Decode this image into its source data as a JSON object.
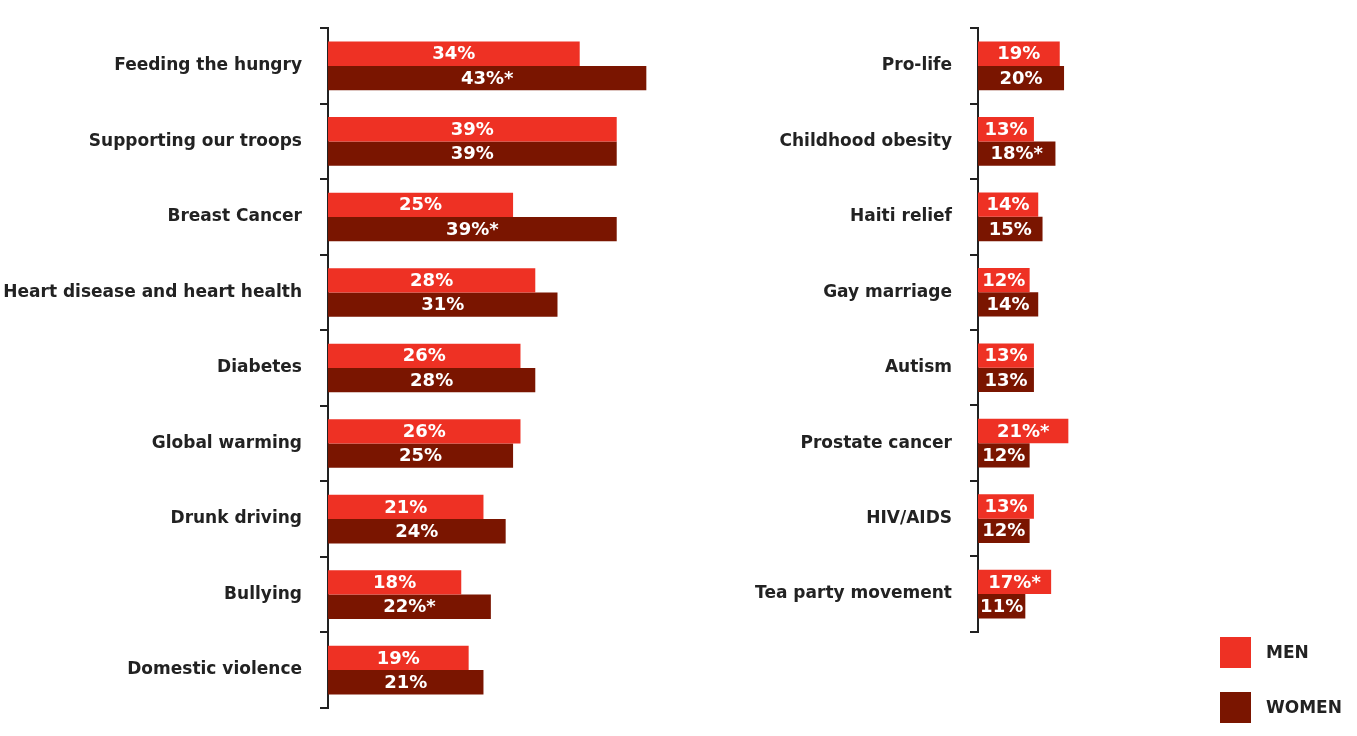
{
  "chart_data": [
    {
      "type": "bar",
      "orientation": "horizontal",
      "categories": [
        "Feeding the hungry",
        "Supporting our troops",
        "Breast Cancer",
        "Heart disease and heart health",
        "Diabetes",
        "Global warming",
        "Drunk driving",
        "Bullying",
        "Domestic violence"
      ],
      "series": [
        {
          "color": "#ee3124",
          "values": [
            34,
            39,
            25,
            28,
            26,
            26,
            21,
            18,
            19
          ],
          "value_labels": [
            "34%",
            "39%",
            "25%",
            "28%",
            "26%",
            "26%",
            "21%",
            "18%",
            "19%"
          ]
        },
        {
          "color": "#7a1500",
          "values": [
            43,
            39,
            39,
            31,
            28,
            25,
            24,
            22,
            21
          ],
          "value_labels": [
            "43%*",
            "39%",
            "39%*",
            "31%",
            "28%",
            "25%",
            "24%",
            "22%*",
            "21%"
          ]
        }
      ],
      "grid": false
    },
    {
      "type": "bar",
      "orientation": "horizontal",
      "categories": [
        "Pro-life",
        "Childhood obesity",
        "Haiti relief",
        "Gay marriage",
        "Autism",
        "Prostate cancer",
        "HIV/AIDS",
        "Tea party movement"
      ],
      "series": [
        {
          "name": "MEN",
          "color": "#ee3124",
          "values": [
            19,
            13,
            14,
            12,
            13,
            21,
            13,
            17
          ],
          "value_labels": [
            "19%",
            "13%",
            "14%",
            "12%",
            "13%",
            "21%*",
            "13%",
            "17%*"
          ]
        },
        {
          "name": "WOMEN",
          "color": "#7a1500",
          "values": [
            20,
            18,
            15,
            14,
            13,
            12,
            12,
            11
          ],
          "value_labels": [
            "20%",
            "18%*",
            "15%",
            "14%",
            "13%",
            "12%",
            "12%",
            "11%"
          ]
        }
      ],
      "legend": "bottom right",
      "grid": false
    }
  ]
}
